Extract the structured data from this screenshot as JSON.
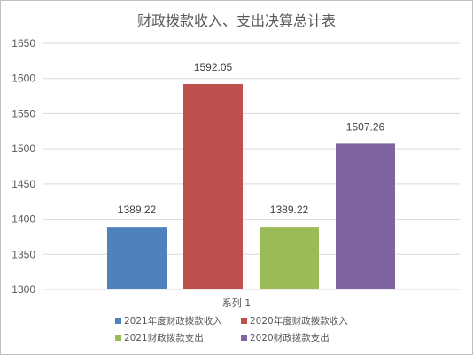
{
  "chart_data": {
    "type": "bar",
    "title": "财政拨款收入、支出决算总计表",
    "categories": [
      "系列 1"
    ],
    "series": [
      {
        "name": "2021年度财政拨款收入",
        "values": [
          1389.22
        ],
        "label": "1389.22",
        "color": "#4f81bd"
      },
      {
        "name": "2020年度财政拨款收入",
        "values": [
          1592.05
        ],
        "label": "1592.05",
        "color": "#c0504d"
      },
      {
        "name": "2021财政拨款支出",
        "values": [
          1389.22
        ],
        "label": "1389.22",
        "color": "#9bbb59"
      },
      {
        "name": "2020财政拨款支出",
        "values": [
          1507.26
        ],
        "label": "1507.26",
        "color": "#8064a2"
      }
    ],
    "yticks": [
      "1300",
      "1350",
      "1400",
      "1450",
      "1500",
      "1550",
      "1600",
      "1650"
    ],
    "ylim": [
      1300,
      1650
    ],
    "grid": true,
    "legend_position": "bottom",
    "xlabel": "",
    "ylabel": ""
  }
}
